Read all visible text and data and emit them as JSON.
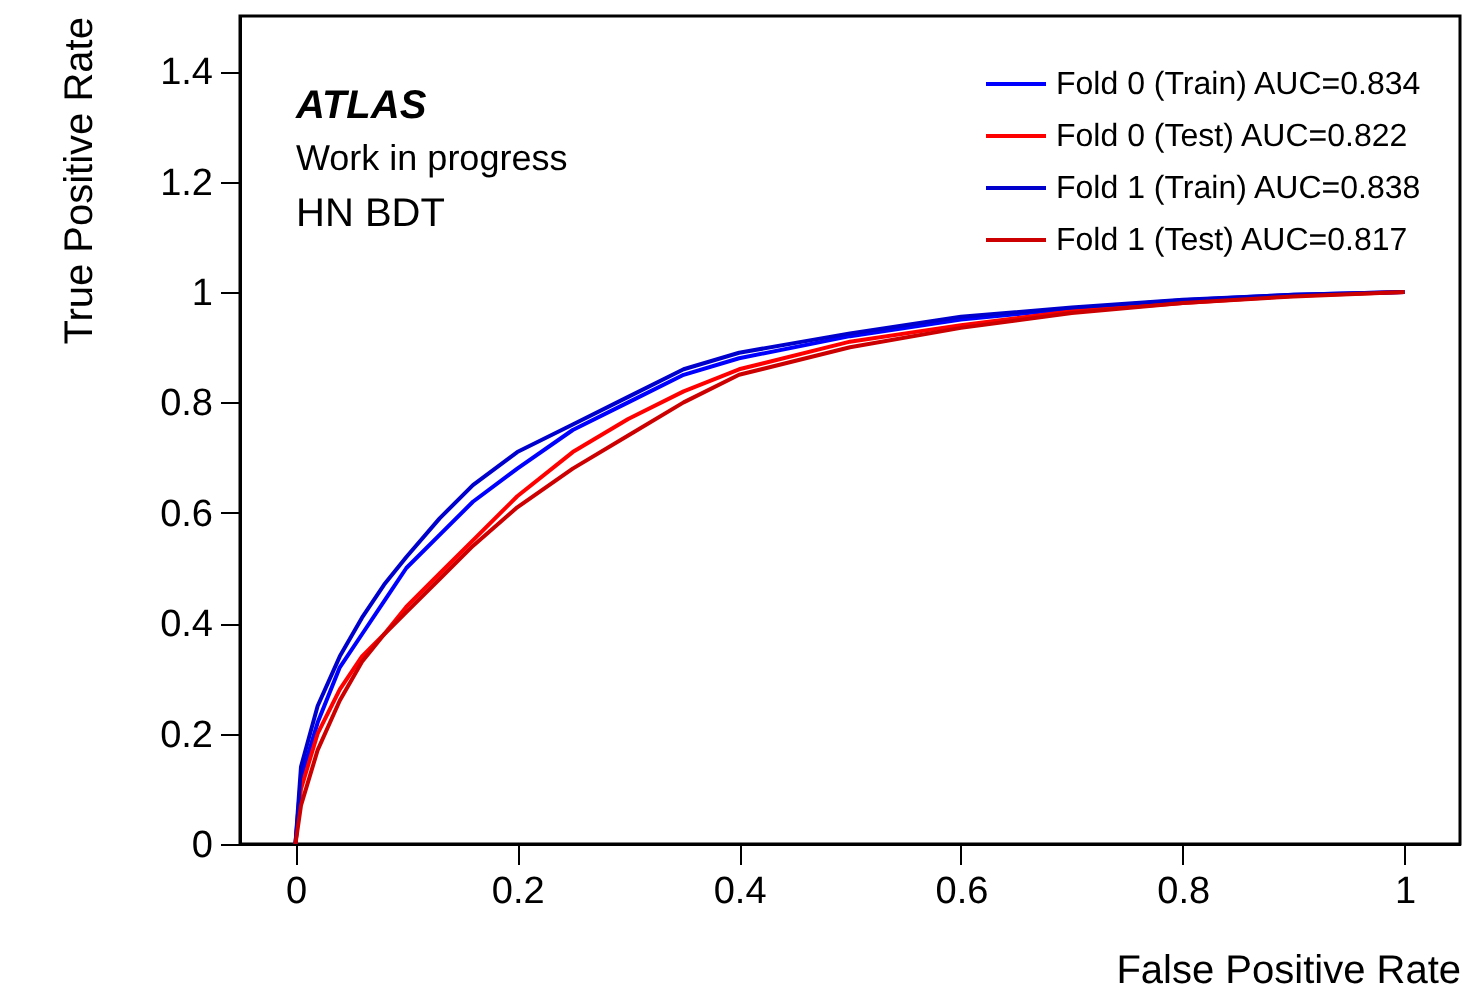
{
  "chart_data": {
    "type": "line",
    "xlabel": "False Positive Rate",
    "ylabel": "True Positive Rate",
    "annotations": [
      "ATLAS",
      "Work in progress",
      "HN BDT"
    ],
    "xlim": [
      -0.05,
      1.05
    ],
    "ylim": [
      0,
      1.5
    ],
    "xticks": [
      0,
      0.2,
      0.4,
      0.6,
      0.8,
      1
    ],
    "yticks": [
      0,
      0.2,
      0.4,
      0.6,
      0.8,
      1,
      1.2,
      1.4
    ],
    "grid": false,
    "legend": "top right",
    "line_style": "solid",
    "marker": "none",
    "series": [
      {
        "name": "Fold 0 (Train) AUC=0.834",
        "color": "#0000ff",
        "x": [
          0,
          0.005,
          0.02,
          0.04,
          0.06,
          0.08,
          0.1,
          0.13,
          0.16,
          0.2,
          0.25,
          0.3,
          0.35,
          0.4,
          0.5,
          0.6,
          0.7,
          0.8,
          0.9,
          1
        ],
        "values": [
          0,
          0.12,
          0.22,
          0.32,
          0.38,
          0.44,
          0.5,
          0.56,
          0.62,
          0.68,
          0.75,
          0.8,
          0.85,
          0.88,
          0.92,
          0.95,
          0.97,
          0.985,
          0.995,
          1
        ]
      },
      {
        "name": "Fold 0 (Test) AUC=0.822",
        "color": "#ff0000",
        "x": [
          0,
          0.005,
          0.02,
          0.04,
          0.06,
          0.08,
          0.1,
          0.13,
          0.16,
          0.2,
          0.25,
          0.3,
          0.35,
          0.4,
          0.5,
          0.6,
          0.7,
          0.8,
          0.9,
          1
        ],
        "values": [
          0,
          0.1,
          0.2,
          0.28,
          0.34,
          0.38,
          0.43,
          0.49,
          0.55,
          0.63,
          0.71,
          0.77,
          0.82,
          0.86,
          0.91,
          0.94,
          0.965,
          0.98,
          0.993,
          1
        ]
      },
      {
        "name": "Fold 1 (Train) AUC=0.838",
        "color": "#0000cc",
        "x": [
          0,
          0.005,
          0.02,
          0.04,
          0.06,
          0.08,
          0.1,
          0.13,
          0.16,
          0.2,
          0.25,
          0.3,
          0.35,
          0.4,
          0.5,
          0.6,
          0.7,
          0.8,
          0.9,
          1
        ],
        "values": [
          0,
          0.14,
          0.25,
          0.34,
          0.41,
          0.47,
          0.52,
          0.59,
          0.65,
          0.71,
          0.76,
          0.81,
          0.86,
          0.89,
          0.925,
          0.955,
          0.972,
          0.986,
          0.995,
          1
        ]
      },
      {
        "name": "Fold 1 (Test) AUC=0.817",
        "color": "#cc0000",
        "x": [
          0,
          0.005,
          0.02,
          0.04,
          0.06,
          0.08,
          0.1,
          0.13,
          0.16,
          0.2,
          0.25,
          0.3,
          0.35,
          0.4,
          0.5,
          0.6,
          0.7,
          0.8,
          0.9,
          1
        ],
        "values": [
          0,
          0.07,
          0.17,
          0.26,
          0.33,
          0.38,
          0.42,
          0.48,
          0.54,
          0.61,
          0.68,
          0.74,
          0.8,
          0.85,
          0.9,
          0.935,
          0.962,
          0.98,
          0.992,
          1
        ]
      }
    ]
  }
}
